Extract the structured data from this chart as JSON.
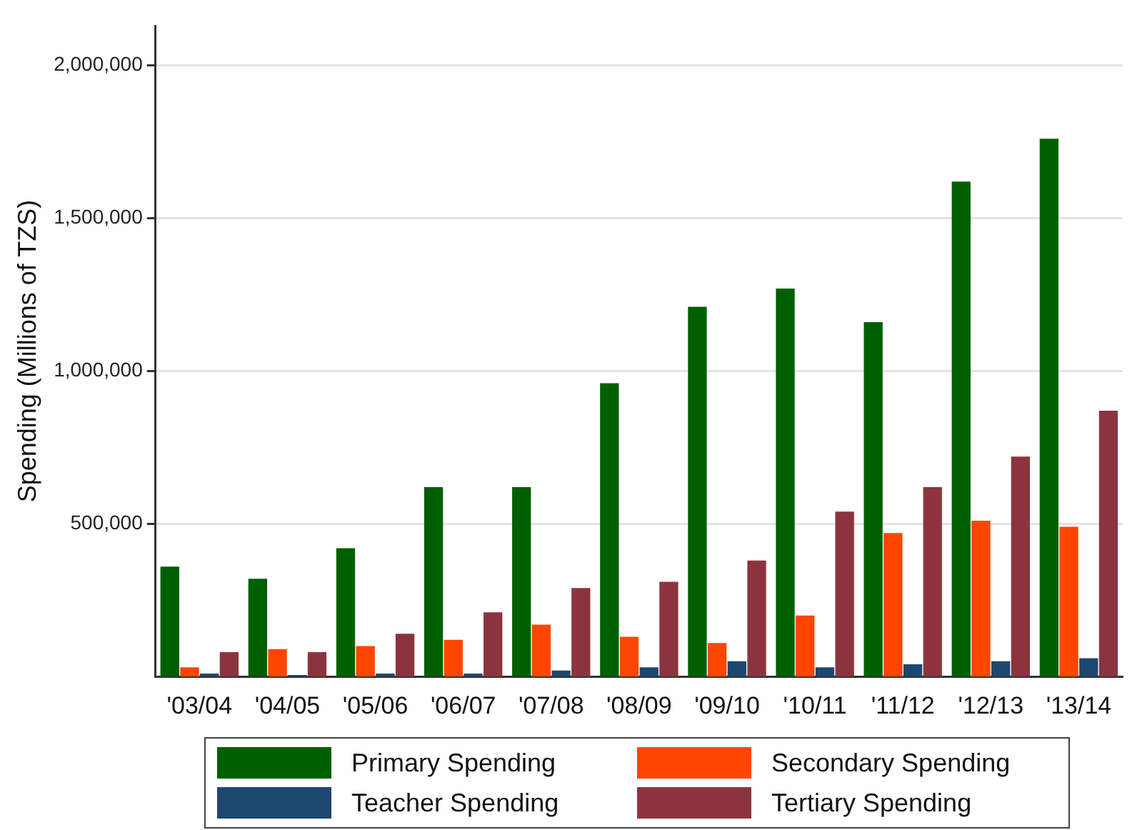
{
  "chart_data": {
    "type": "bar",
    "ylabel": "Spending (Millions of TZS)",
    "categories": [
      "'03/04",
      "'04/05",
      "'05/06",
      "'06/07",
      "'07/08",
      "'08/09",
      "'09/10",
      "'10/11",
      "'11/12",
      "'12/13",
      "'13/14"
    ],
    "series": [
      {
        "name": "Primary Spending",
        "color": "#005f00",
        "values": [
          360000,
          320000,
          420000,
          620000,
          620000,
          960000,
          1210000,
          1270000,
          1160000,
          1620000,
          1760000
        ]
      },
      {
        "name": "Secondary Spending",
        "color": "#ff4500",
        "values": [
          30000,
          90000,
          100000,
          120000,
          170000,
          130000,
          110000,
          200000,
          470000,
          510000,
          490000
        ]
      },
      {
        "name": "Teacher Spending",
        "color": "#1c4870",
        "values": [
          10000,
          5000,
          10000,
          10000,
          20000,
          30000,
          50000,
          30000,
          40000,
          50000,
          60000
        ]
      },
      {
        "name": "Tertiary Spending",
        "color": "#8b343f",
        "values": [
          80000,
          80000,
          140000,
          210000,
          290000,
          310000,
          380000,
          540000,
          620000,
          720000,
          870000
        ]
      }
    ],
    "ylim": [
      0,
      2130000
    ],
    "yticks": [
      {
        "value": 500000,
        "label": "500,000"
      },
      {
        "value": 1000000,
        "label": "1,000,000"
      },
      {
        "value": 1500000,
        "label": "1,500,000"
      },
      {
        "value": 2000000,
        "label": "2,000,000"
      }
    ],
    "grid": "y",
    "legend": "bottom"
  }
}
